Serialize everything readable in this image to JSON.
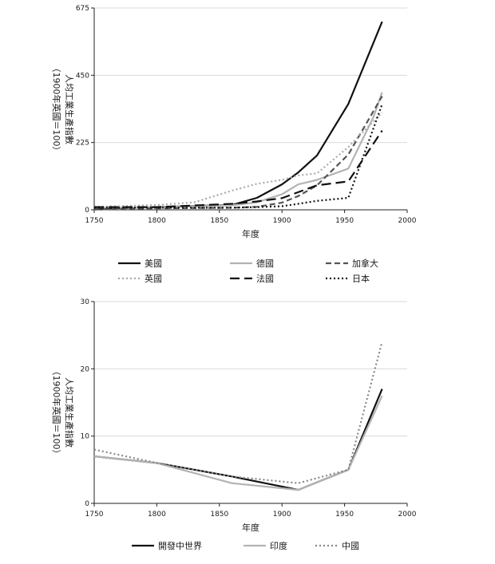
{
  "chart_data": [
    {
      "type": "line",
      "xlabel": "年度",
      "ylabel": "人均工業生產指數（1900年英國＝100）",
      "ylabel_main": "人均工業生產指數",
      "ylabel_paren": "（1900年英國＝100）",
      "xlim": [
        1750,
        2000
      ],
      "ylim": [
        0,
        675
      ],
      "xticks": [
        1750,
        1800,
        1850,
        1900,
        1950,
        2000
      ],
      "yticks": [
        0,
        225,
        450,
        675
      ],
      "grid": true,
      "legend": "bottom",
      "series": [
        {
          "name": "美國",
          "color": "#111111",
          "dash": "solid",
          "points": [
            [
              1750,
              4
            ],
            [
              1800,
              9
            ],
            [
              1860,
              16
            ],
            [
              1880,
              40
            ],
            [
              1900,
              85
            ],
            [
              1913,
              125
            ],
            [
              1928,
              182
            ],
            [
              1953,
              354
            ],
            [
              1980,
              629
            ]
          ]
        },
        {
          "name": "德國",
          "color": "#b3b3b3",
          "dash": "solid",
          "points": [
            [
              1750,
              8
            ],
            [
              1800,
              8
            ],
            [
              1860,
              15
            ],
            [
              1880,
              25
            ],
            [
              1900,
              52
            ],
            [
              1913,
              85
            ],
            [
              1928,
              100
            ],
            [
              1953,
              138
            ],
            [
              1973,
              310
            ],
            [
              1980,
              393
            ]
          ]
        },
        {
          "name": "加拿大",
          "color": "#555555",
          "dash": "dashed",
          "points": [
            [
              1750,
              1
            ],
            [
              1800,
              5
            ],
            [
              1860,
              7
            ],
            [
              1880,
              10
            ],
            [
              1900,
              24
            ],
            [
              1913,
              46
            ],
            [
              1928,
              82
            ],
            [
              1953,
              185
            ],
            [
              1980,
              380
            ]
          ]
        },
        {
          "name": "英國",
          "color": "#aaaaaa",
          "dash": "dotted",
          "points": [
            [
              1750,
              10
            ],
            [
              1800,
              16
            ],
            [
              1830,
              25
            ],
            [
              1860,
              64
            ],
            [
              1880,
              87
            ],
            [
              1900,
              100
            ],
            [
              1913,
              115
            ],
            [
              1928,
              122
            ],
            [
              1953,
              210
            ],
            [
              1980,
              325
            ]
          ]
        },
        {
          "name": "法國",
          "color": "#111111",
          "dash": "longdash",
          "points": [
            [
              1750,
              9
            ],
            [
              1800,
              9
            ],
            [
              1860,
              20
            ],
            [
              1880,
              28
            ],
            [
              1900,
              39
            ],
            [
              1913,
              59
            ],
            [
              1928,
              82
            ],
            [
              1953,
              95
            ],
            [
              1980,
              265
            ]
          ]
        },
        {
          "name": "日本",
          "color": "#111111",
          "dash": "dotted",
          "points": [
            [
              1750,
              7
            ],
            [
              1800,
              7
            ],
            [
              1860,
              7
            ],
            [
              1880,
              9
            ],
            [
              1900,
              12
            ],
            [
              1913,
              20
            ],
            [
              1928,
              30
            ],
            [
              1953,
              40
            ],
            [
              1980,
              353
            ]
          ]
        }
      ]
    },
    {
      "type": "line",
      "xlabel": "年度",
      "ylabel": "人均工業生產指數（1900年英國＝100）",
      "ylabel_main": "人均工業生產指數",
      "ylabel_paren": "（1900年英國＝100）",
      "xlim": [
        1750,
        2000
      ],
      "ylim": [
        0,
        30
      ],
      "xticks": [
        1750,
        1800,
        1850,
        1900,
        1950,
        2000
      ],
      "yticks": [
        0,
        10,
        20,
        30
      ],
      "grid": true,
      "legend": "bottom",
      "series": [
        {
          "name": "開發中世界",
          "color": "#111111",
          "dash": "solid",
          "points": [
            [
              1750,
              7
            ],
            [
              1800,
              6
            ],
            [
              1860,
              4
            ],
            [
              1913,
              2
            ],
            [
              1953,
              5
            ],
            [
              1980,
              17
            ]
          ]
        },
        {
          "name": "印度",
          "color": "#b3b3b3",
          "dash": "solid",
          "points": [
            [
              1750,
              7
            ],
            [
              1800,
              6
            ],
            [
              1860,
              3
            ],
            [
              1913,
              2
            ],
            [
              1953,
              5
            ],
            [
              1980,
              16
            ]
          ]
        },
        {
          "name": "中國",
          "color": "#888888",
          "dash": "dotted",
          "points": [
            [
              1750,
              8
            ],
            [
              1800,
              6
            ],
            [
              1860,
              4
            ],
            [
              1913,
              3
            ],
            [
              1953,
              5
            ],
            [
              1980,
              24
            ]
          ]
        }
      ]
    }
  ]
}
